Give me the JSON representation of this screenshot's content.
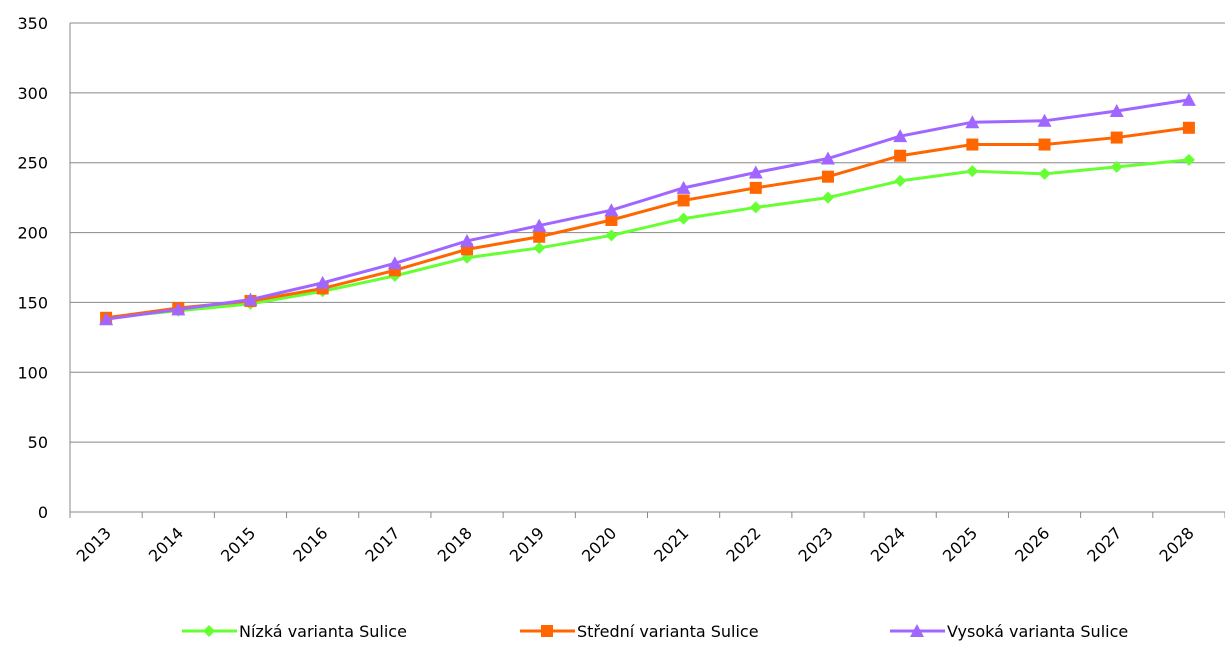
{
  "chart_data": {
    "type": "line",
    "categories": [
      "2013",
      "2014",
      "2015",
      "2016",
      "2017",
      "2018",
      "2019",
      "2020",
      "2021",
      "2022",
      "2023",
      "2024",
      "2025",
      "2026",
      "2027",
      "2028"
    ],
    "series": [
      {
        "name": "Nízká varianta Sulice",
        "color": "#66ff33",
        "marker": "diamond",
        "values": [
          139,
          144,
          149,
          158,
          169,
          182,
          189,
          198,
          210,
          218,
          225,
          237,
          244,
          242,
          247,
          252
        ]
      },
      {
        "name": "Střední varianta Sulice",
        "color": "#ff6600",
        "marker": "square",
        "values": [
          139,
          146,
          151,
          160,
          173,
          188,
          197,
          209,
          223,
          232,
          240,
          255,
          263,
          263,
          268,
          275
        ]
      },
      {
        "name": "Vysoká varianta Sulice",
        "color": "#a066ff",
        "marker": "triangle",
        "values": [
          138,
          145,
          152,
          164,
          178,
          194,
          205,
          216,
          232,
          243,
          253,
          269,
          279,
          280,
          287,
          295
        ]
      }
    ],
    "ylim": [
      0,
      350
    ],
    "yticks": [
      0,
      50,
      100,
      150,
      200,
      250,
      300,
      350
    ],
    "grid": true,
    "legend": "bottom"
  }
}
